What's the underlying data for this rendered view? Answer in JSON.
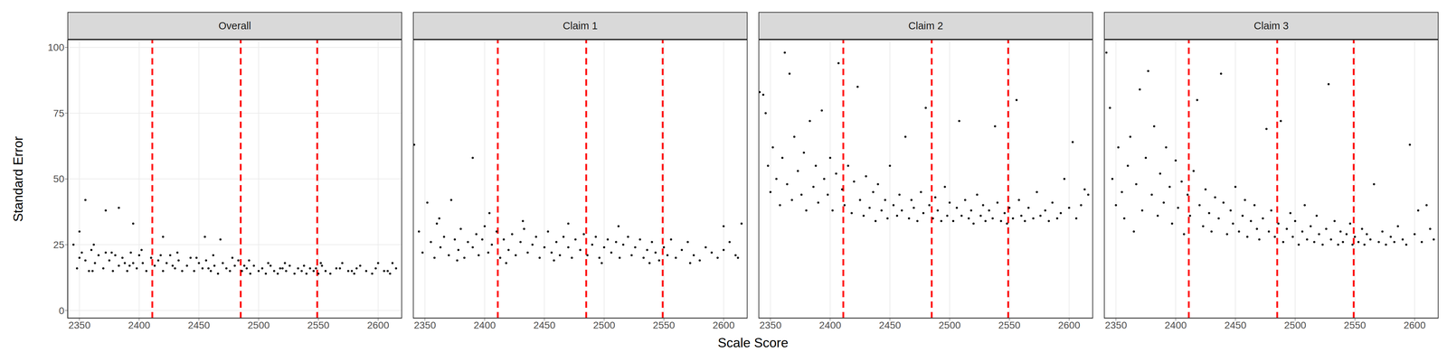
{
  "xlabel": "Scale Score",
  "ylabel": "Standard Error",
  "chart_data": [
    {
      "type": "scatter",
      "title": "Overall",
      "color": "#000000",
      "grid": true,
      "xlim": [
        2340,
        2620
      ],
      "ylim": [
        -3,
        103
      ],
      "xticks": [
        2350,
        2400,
        2450,
        2500,
        2550,
        2600
      ],
      "yticks": [
        0,
        25,
        50,
        75,
        100
      ],
      "cut_scores": [
        2411,
        2485,
        2549
      ],
      "x": [
        2345,
        2348,
        2352,
        2355,
        2358,
        2360,
        2363,
        2366,
        2370,
        2372,
        2375,
        2378,
        2380,
        2383,
        2386,
        2390,
        2393,
        2395,
        2398,
        2400,
        2403,
        2406,
        2410,
        2413,
        2416,
        2420,
        2423,
        2426,
        2430,
        2433,
        2436,
        2440,
        2443,
        2446,
        2450,
        2453,
        2456,
        2460,
        2463,
        2466,
        2470,
        2473,
        2476,
        2480,
        2483,
        2486,
        2490,
        2493,
        2496,
        2500,
        2503,
        2506,
        2510,
        2513,
        2516,
        2520,
        2523,
        2526,
        2530,
        2533,
        2536,
        2540,
        2543,
        2546,
        2550,
        2553,
        2556,
        2560,
        2565,
        2570,
        2575,
        2580,
        2585,
        2590,
        2595,
        2600,
        2605,
        2610,
        2615,
        2355,
        2372,
        2383,
        2350,
        2395,
        2420,
        2455,
        2468,
        2350,
        2362,
        2377,
        2388,
        2402,
        2418,
        2432,
        2448,
        2462,
        2478,
        2492,
        2508,
        2522,
        2538,
        2552,
        2568,
        2582,
        2598,
        2612,
        2361,
        2392,
        2428,
        2458,
        2488,
        2518,
        2548,
        2578,
        2608
      ],
      "values": [
        25,
        16,
        22,
        19,
        15,
        23,
        18,
        21,
        16,
        22,
        19,
        15,
        21,
        17,
        20,
        15,
        22,
        18,
        16,
        21,
        18,
        15,
        20,
        17,
        19,
        15,
        18,
        21,
        16,
        19,
        15,
        17,
        20,
        15,
        18,
        16,
        19,
        15,
        17,
        14,
        18,
        16,
        15,
        17,
        19,
        15,
        16,
        14,
        17,
        15,
        16,
        14,
        17,
        15,
        14,
        16,
        15,
        17,
        14,
        16,
        15,
        14,
        16,
        15,
        14,
        17,
        15,
        14,
        16,
        18,
        15,
        14,
        17,
        15,
        14,
        18,
        15,
        14,
        16,
        42,
        38,
        39,
        30,
        33,
        28,
        28,
        27,
        20,
        25,
        22,
        18,
        23,
        21,
        22,
        20,
        21,
        20,
        19,
        18,
        18,
        17,
        18,
        16,
        16,
        16,
        18,
        15,
        17,
        17,
        16,
        17,
        16,
        16,
        15,
        15
      ]
    },
    {
      "type": "scatter",
      "title": "Claim 1",
      "color": "#000000",
      "grid": true,
      "tick_labels": "x",
      "xlim": [
        2340,
        2620
      ],
      "ylim": [
        -3,
        103
      ],
      "xticks": [
        2350,
        2400,
        2450,
        2500,
        2550,
        2600
      ],
      "yticks": [
        0,
        25,
        50,
        75,
        100
      ],
      "cut_scores": [
        2411,
        2485,
        2549
      ],
      "x": [
        2345,
        2348,
        2352,
        2355,
        2358,
        2360,
        2363,
        2366,
        2370,
        2372,
        2375,
        2378,
        2380,
        2383,
        2386,
        2390,
        2393,
        2395,
        2398,
        2400,
        2403,
        2406,
        2410,
        2413,
        2416,
        2420,
        2423,
        2426,
        2430,
        2433,
        2436,
        2440,
        2443,
        2446,
        2450,
        2453,
        2456,
        2460,
        2463,
        2466,
        2470,
        2473,
        2476,
        2480,
        2483,
        2486,
        2490,
        2493,
        2496,
        2500,
        2503,
        2506,
        2510,
        2513,
        2516,
        2520,
        2523,
        2526,
        2530,
        2533,
        2536,
        2540,
        2543,
        2546,
        2550,
        2553,
        2556,
        2560,
        2565,
        2570,
        2575,
        2580,
        2585,
        2590,
        2595,
        2600,
        2605,
        2610,
        2615,
        2341,
        2390,
        2362,
        2404,
        2432,
        2470,
        2512,
        2600,
        2377,
        2418,
        2458,
        2498,
        2538,
        2572,
        2612
      ],
      "values": [
        30,
        22,
        41,
        26,
        20,
        33,
        24,
        28,
        21,
        42,
        27,
        23,
        31,
        20,
        26,
        24,
        29,
        21,
        27,
        32,
        22,
        25,
        30,
        20,
        27,
        23,
        29,
        21,
        26,
        31,
        22,
        25,
        28,
        20,
        24,
        30,
        22,
        26,
        21,
        28,
        24,
        20,
        27,
        23,
        29,
        21,
        25,
        28,
        20,
        24,
        27,
        22,
        26,
        20,
        25,
        28,
        21,
        24,
        27,
        20,
        23,
        26,
        22,
        19,
        24,
        21,
        27,
        20,
        23,
        26,
        21,
        19,
        24,
        22,
        20,
        23,
        26,
        21,
        33,
        63,
        58,
        35,
        37,
        34,
        33,
        32,
        32,
        19,
        18,
        19,
        18,
        18,
        18,
        20
      ]
    },
    {
      "type": "scatter",
      "title": "Claim 2",
      "color": "#000000",
      "grid": true,
      "tick_labels": "x",
      "xlim": [
        2340,
        2620
      ],
      "ylim": [
        -3,
        103
      ],
      "xticks": [
        2350,
        2400,
        2450,
        2500,
        2550,
        2600
      ],
      "yticks": [
        0,
        25,
        50,
        75,
        100
      ],
      "cut_scores": [
        2411,
        2485,
        2549
      ],
      "x": [
        2341,
        2344,
        2346,
        2348,
        2350,
        2352,
        2355,
        2358,
        2360,
        2362,
        2364,
        2366,
        2368,
        2370,
        2373,
        2376,
        2378,
        2380,
        2383,
        2386,
        2388,
        2390,
        2393,
        2395,
        2398,
        2400,
        2402,
        2405,
        2407,
        2410,
        2412,
        2415,
        2418,
        2420,
        2423,
        2425,
        2428,
        2430,
        2433,
        2436,
        2438,
        2440,
        2443,
        2446,
        2448,
        2450,
        2453,
        2456,
        2458,
        2460,
        2463,
        2466,
        2468,
        2470,
        2473,
        2476,
        2478,
        2480,
        2483,
        2486,
        2488,
        2490,
        2493,
        2496,
        2498,
        2500,
        2503,
        2506,
        2508,
        2510,
        2513,
        2516,
        2518,
        2520,
        2523,
        2526,
        2528,
        2530,
        2533,
        2536,
        2538,
        2540,
        2543,
        2546,
        2548,
        2550,
        2553,
        2556,
        2558,
        2560,
        2563,
        2566,
        2570,
        2573,
        2576,
        2580,
        2583,
        2586,
        2590,
        2593,
        2596,
        2600,
        2603,
        2606,
        2610,
        2613,
        2616
      ],
      "values": [
        83,
        82,
        75,
        55,
        45,
        62,
        50,
        40,
        58,
        98,
        48,
        90,
        42,
        66,
        53,
        44,
        60,
        38,
        72,
        47,
        55,
        41,
        76,
        50,
        44,
        58,
        38,
        52,
        94,
        46,
        40,
        55,
        37,
        49,
        85,
        42,
        36,
        51,
        39,
        45,
        34,
        48,
        38,
        42,
        35,
        55,
        40,
        36,
        44,
        38,
        66,
        35,
        42,
        39,
        34,
        45,
        37,
        77,
        40,
        35,
        43,
        38,
        34,
        47,
        36,
        41,
        34,
        39,
        72,
        36,
        42,
        35,
        38,
        33,
        44,
        36,
        40,
        34,
        38,
        35,
        70,
        41,
        34,
        37,
        33,
        39,
        35,
        80,
        42,
        36,
        34,
        39,
        35,
        45,
        36,
        38,
        34,
        41,
        35,
        37,
        50,
        39,
        64,
        35,
        40,
        46,
        44
      ]
    },
    {
      "type": "scatter",
      "title": "Claim 3",
      "color": "#000000",
      "grid": true,
      "tick_labels": "x",
      "xlim": [
        2340,
        2620
      ],
      "ylim": [
        -3,
        103
      ],
      "xticks": [
        2350,
        2400,
        2450,
        2500,
        2550,
        2600
      ],
      "yticks": [
        0,
        25,
        50,
        75,
        100
      ],
      "cut_scores": [
        2411,
        2485,
        2549
      ],
      "x": [
        2342,
        2345,
        2347,
        2350,
        2352,
        2355,
        2357,
        2360,
        2362,
        2365,
        2367,
        2370,
        2372,
        2375,
        2377,
        2380,
        2382,
        2385,
        2387,
        2390,
        2392,
        2395,
        2397,
        2400,
        2402,
        2405,
        2407,
        2410,
        2412,
        2415,
        2418,
        2420,
        2423,
        2425,
        2428,
        2430,
        2433,
        2436,
        2438,
        2440,
        2443,
        2446,
        2448,
        2450,
        2453,
        2456,
        2458,
        2460,
        2463,
        2466,
        2468,
        2470,
        2473,
        2476,
        2478,
        2480,
        2483,
        2486,
        2488,
        2490,
        2493,
        2496,
        2498,
        2500,
        2503,
        2506,
        2508,
        2510,
        2513,
        2516,
        2518,
        2520,
        2523,
        2526,
        2528,
        2530,
        2533,
        2536,
        2538,
        2540,
        2543,
        2546,
        2548,
        2550,
        2553,
        2556,
        2558,
        2560,
        2563,
        2566,
        2570,
        2573,
        2576,
        2580,
        2583,
        2586,
        2590,
        2593,
        2596,
        2600,
        2603,
        2606,
        2610,
        2613,
        2616
      ],
      "values": [
        98,
        77,
        50,
        40,
        62,
        45,
        35,
        55,
        66,
        30,
        48,
        84,
        38,
        58,
        91,
        44,
        70,
        36,
        52,
        41,
        62,
        47,
        33,
        57,
        39,
        49,
        29,
        44,
        36,
        53,
        80,
        40,
        32,
        46,
        37,
        30,
        43,
        35,
        90,
        41,
        29,
        38,
        33,
        47,
        30,
        36,
        42,
        28,
        34,
        40,
        31,
        27,
        35,
        69,
        30,
        38,
        28,
        33,
        72,
        26,
        31,
        37,
        28,
        34,
        25,
        30,
        40,
        27,
        32,
        26,
        36,
        29,
        25,
        31,
        86,
        27,
        34,
        25,
        30,
        26,
        29,
        33,
        25,
        28,
        26,
        31,
        25,
        29,
        27,
        48,
        26,
        30,
        25,
        28,
        26,
        32,
        27,
        25,
        63,
        29,
        38,
        26,
        40,
        31,
        27
      ]
    }
  ]
}
